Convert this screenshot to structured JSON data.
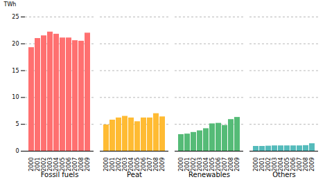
{
  "chart_data": {
    "type": "bar",
    "ylabel": "TWh",
    "categories": [
      "2000",
      "2001",
      "2002",
      "2003",
      "2004",
      "2005",
      "2006",
      "2007",
      "2008",
      "2009"
    ],
    "series": [
      {
        "name": "Fossil fuels",
        "color": "#FF7070",
        "values": [
          19.3,
          21.0,
          21.5,
          22.2,
          21.8,
          21.1,
          21.1,
          20.6,
          20.5,
          22.0
        ]
      },
      {
        "name": "Peat",
        "color": "#FFBB33",
        "values": [
          4.9,
          5.8,
          6.2,
          6.5,
          6.2,
          5.5,
          6.2,
          6.2,
          7.0,
          6.4
        ]
      },
      {
        "name": "Renewables",
        "color": "#55BB77",
        "values": [
          3.1,
          3.2,
          3.5,
          3.8,
          4.2,
          5.1,
          5.2,
          4.8,
          5.9,
          6.3
        ]
      },
      {
        "name": "Others",
        "color": "#55BBBB",
        "values": [
          0.9,
          0.9,
          0.95,
          1.0,
          1.0,
          1.0,
          1.0,
          1.0,
          1.05,
          1.4
        ]
      }
    ],
    "ylim": [
      0,
      25
    ],
    "yticks": [
      0,
      5,
      10,
      15,
      20,
      25
    ],
    "grid": true
  }
}
